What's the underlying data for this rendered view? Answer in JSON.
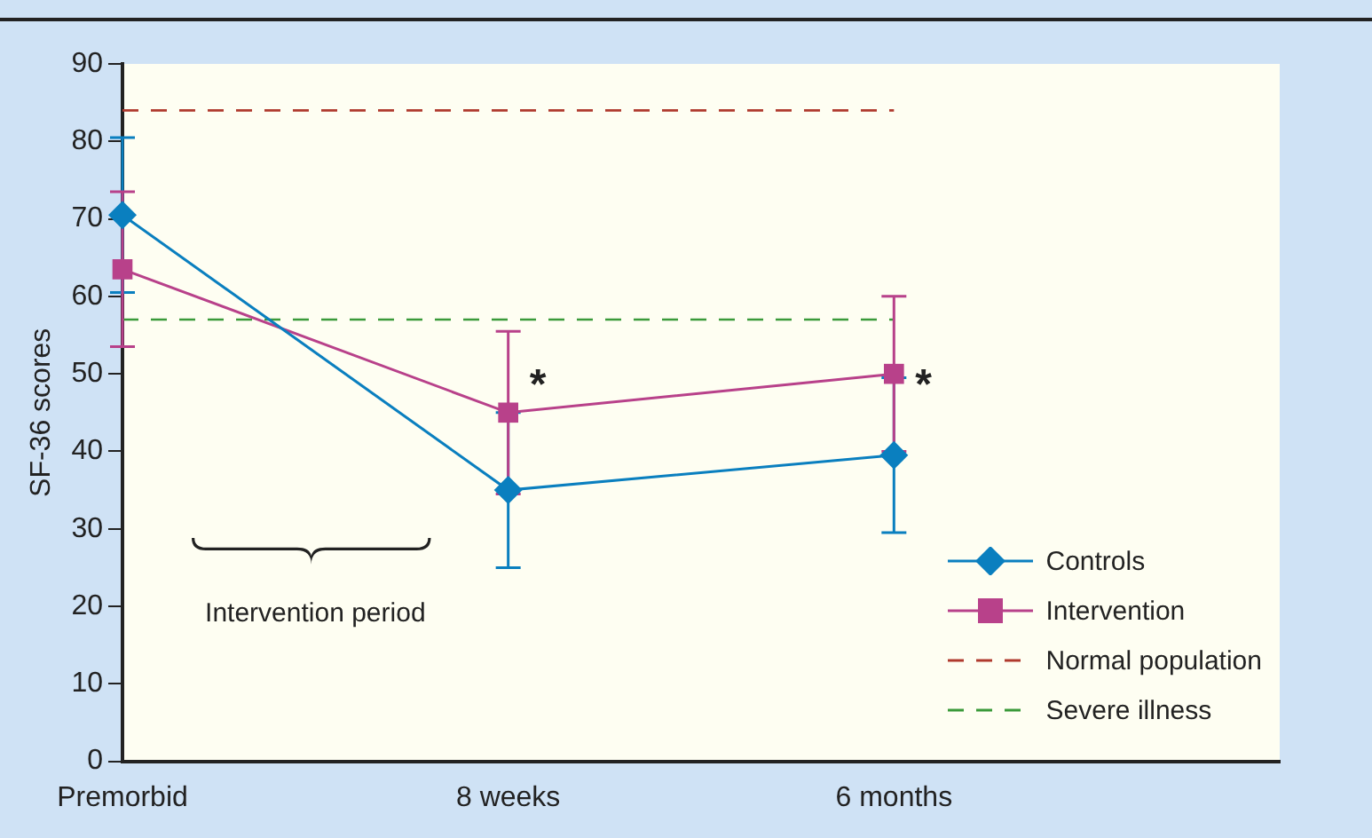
{
  "chart_data": {
    "type": "line",
    "categories": [
      "Premorbid",
      "8 weeks",
      "6 months",
      null
    ],
    "ylabel": "SF-36 scores",
    "ylim": [
      0,
      90
    ],
    "yticks": [
      0,
      10,
      20,
      30,
      40,
      50,
      60,
      70,
      80,
      90
    ],
    "series": [
      {
        "name": "Controls",
        "color": "#0a7fbf",
        "marker": "diamond",
        "values": [
          70.5,
          35,
          39.5,
          null
        ],
        "errors": [
          10,
          10,
          10,
          null
        ]
      },
      {
        "name": "Intervention",
        "color": "#b8418a",
        "marker": "square",
        "values": [
          63.5,
          45,
          50,
          null
        ],
        "errors": [
          10,
          10.5,
          10,
          null
        ]
      }
    ],
    "ref_lines": [
      {
        "axis": "y",
        "value": 84,
        "label": "Normal population",
        "color": "#b03a2e",
        "line_style": "dashed"
      },
      {
        "axis": "y",
        "value": 57,
        "label": "Severe illness",
        "color": "#3a9a3a",
        "line_style": "dashed"
      }
    ],
    "annotations": [
      "Intervention period",
      {
        "text": "*",
        "x": "8 weeks",
        "y": 50
      },
      {
        "text": "*",
        "x": "6 months",
        "y": 50
      }
    ],
    "grid": false,
    "legend": "bottom right",
    "line_style": "solid"
  }
}
